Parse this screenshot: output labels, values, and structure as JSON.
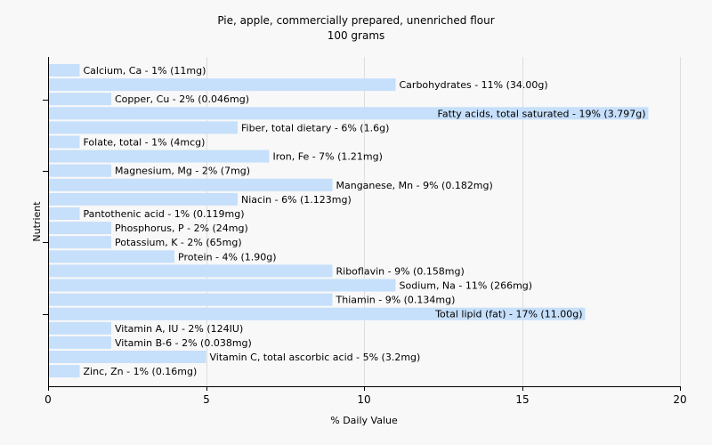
{
  "chart_data": {
    "type": "bar",
    "orientation": "horizontal",
    "title": "Pie, apple, commercially prepared, unenriched flour",
    "subtitle": "100 grams",
    "xlabel": "% Daily Value",
    "ylabel": "Nutrient",
    "xlim": [
      0,
      20
    ],
    "xticks": [
      0,
      5,
      10,
      15,
      20
    ],
    "grid": "vertical",
    "bar_color": "#c6dffa",
    "categories": [
      "Calcium, Ca",
      "Carbohydrates",
      "Copper, Cu",
      "Fatty acids, total saturated",
      "Fiber, total dietary",
      "Folate, total",
      "Iron, Fe",
      "Magnesium, Mg",
      "Manganese, Mn",
      "Niacin",
      "Pantothenic acid",
      "Phosphorus, P",
      "Potassium, K",
      "Protein",
      "Riboflavin",
      "Sodium, Na",
      "Thiamin",
      "Total lipid (fat)",
      "Vitamin A, IU",
      "Vitamin B-6",
      "Vitamin C, total ascorbic acid",
      "Zinc, Zn"
    ],
    "values": [
      1,
      11,
      2,
      19,
      6,
      1,
      7,
      2,
      9,
      6,
      1,
      2,
      2,
      4,
      9,
      11,
      9,
      17,
      2,
      2,
      5,
      1
    ],
    "labels": [
      "Calcium, Ca - 1% (11mg)",
      "Carbohydrates - 11% (34.00g)",
      "Copper, Cu - 2% (0.046mg)",
      "Fatty acids, total saturated - 19% (3.797g)",
      "Fiber, total dietary - 6% (1.6g)",
      "Folate, total - 1% (4mcg)",
      "Iron, Fe - 7% (1.21mg)",
      "Magnesium, Mg - 2% (7mg)",
      "Manganese, Mn - 9% (0.182mg)",
      "Niacin - 6% (1.123mg)",
      "Pantothenic acid - 1% (0.119mg)",
      "Phosphorus, P - 2% (24mg)",
      "Potassium, K - 2% (65mg)",
      "Protein - 4% (1.90g)",
      "Riboflavin - 9% (0.158mg)",
      "Sodium, Na - 11% (266mg)",
      "Thiamin - 9% (0.134mg)",
      "Total lipid (fat) - 17% (11.00g)",
      "Vitamin A, IU - 2% (124IU)",
      "Vitamin B-6 - 2% (0.038mg)",
      "Vitamin C, total ascorbic acid - 5% (3.2mg)",
      "Zinc, Zn - 1% (0.16mg)"
    ]
  }
}
